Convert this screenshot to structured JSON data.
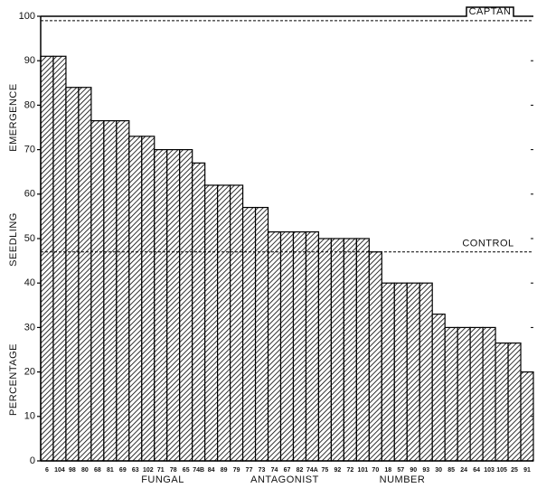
{
  "chart_data": {
    "type": "bar",
    "categories": [
      "6",
      "104",
      "98",
      "80",
      "68",
      "81",
      "69",
      "63",
      "102",
      "71",
      "78",
      "65",
      "74B",
      "84",
      "89",
      "79",
      "77",
      "73",
      "74",
      "67",
      "82",
      "74A",
      "75",
      "92",
      "72",
      "101",
      "70",
      "18",
      "57",
      "90",
      "93",
      "30",
      "85",
      "24",
      "64",
      "103",
      "105",
      "25",
      "91"
    ],
    "values": [
      91,
      91,
      84,
      84,
      76.5,
      76.5,
      76.5,
      73,
      73,
      70,
      70,
      70,
      67,
      62,
      62,
      62,
      57,
      57,
      51.5,
      51.5,
      51.5,
      51.5,
      50,
      50,
      50,
      50,
      47,
      40,
      40,
      40,
      40,
      33,
      30,
      30,
      30,
      30,
      26.5,
      26.5,
      20
    ],
    "color": "#000000",
    "ylim": [
      0,
      100
    ],
    "yticks": [
      0,
      10,
      20,
      30,
      40,
      50,
      60,
      70,
      80,
      90,
      100
    ],
    "y_label": [
      "PERCENTAGE",
      "SEEDLING",
      "EMERGENCE"
    ],
    "x_label": [
      "FUNGAL",
      "ANTAGONIST",
      "NUMBER"
    ],
    "reference_lines": [
      {
        "label": "CONTROL",
        "value": 47
      },
      {
        "label": "CAPTAN",
        "value": 99
      }
    ],
    "grid": false
  }
}
